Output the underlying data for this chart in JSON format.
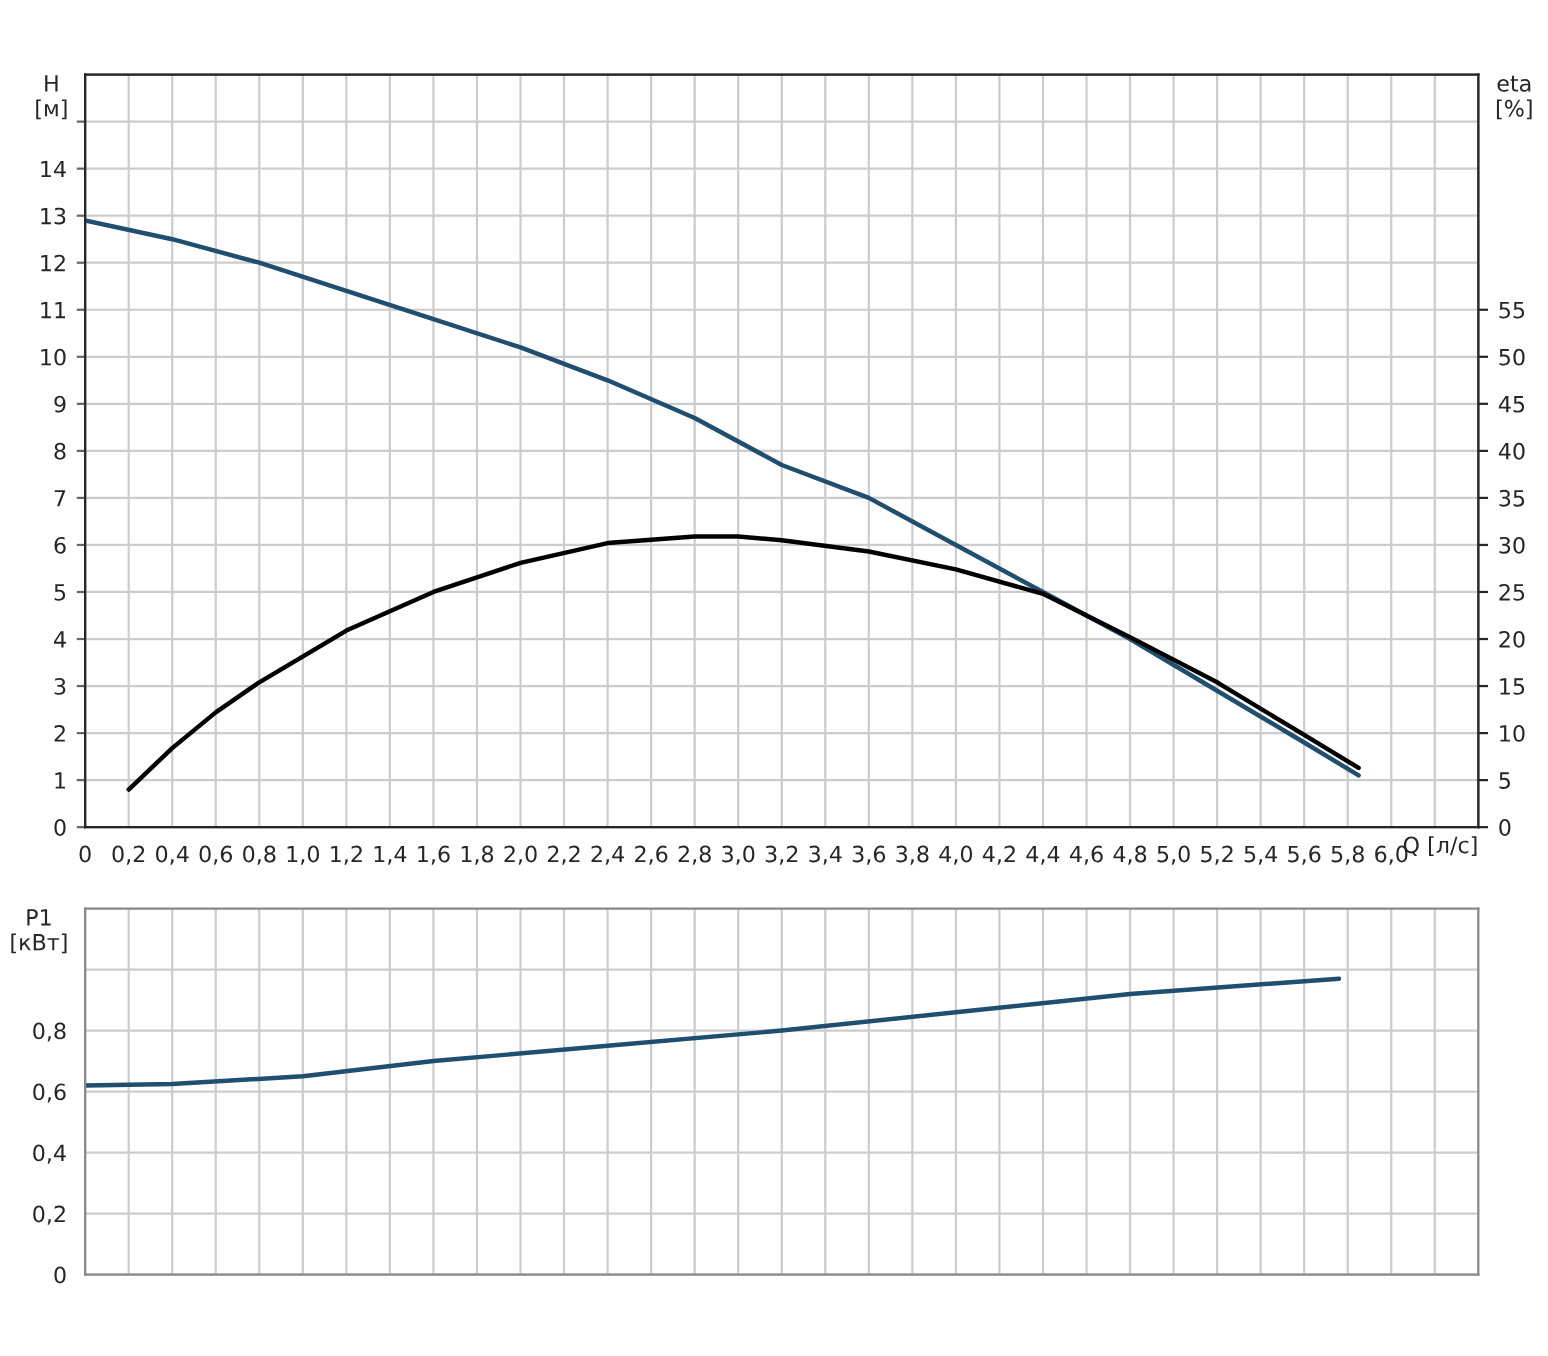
{
  "chart_data": [
    {
      "type": "line",
      "xlabel": "Q [л/с]",
      "ylabel": "H\n[м]",
      "y2label": "eta\n[%]",
      "grid": true,
      "legend": false,
      "marker": "none",
      "line_style": "solid",
      "xlim": [
        0,
        6.4
      ],
      "xticks": [
        {
          "value": 0,
          "label": "0"
        },
        {
          "value": 0.2,
          "label": "0,2"
        },
        {
          "value": 0.4,
          "label": "0,4"
        },
        {
          "value": 0.6,
          "label": "0,6"
        },
        {
          "value": 0.8,
          "label": "0,8"
        },
        {
          "value": 1.0,
          "label": "1,0"
        },
        {
          "value": 1.2,
          "label": "1,2"
        },
        {
          "value": 1.4,
          "label": "1,4"
        },
        {
          "value": 1.6,
          "label": "1,6"
        },
        {
          "value": 1.8,
          "label": "1,8"
        },
        {
          "value": 2.0,
          "label": "2,0"
        },
        {
          "value": 2.2,
          "label": "2,2"
        },
        {
          "value": 2.4,
          "label": "2,4"
        },
        {
          "value": 2.6,
          "label": "2,6"
        },
        {
          "value": 2.8,
          "label": "2,8"
        },
        {
          "value": 3.0,
          "label": "3,0"
        },
        {
          "value": 3.2,
          "label": "3,2"
        },
        {
          "value": 3.4,
          "label": "3,4"
        },
        {
          "value": 3.6,
          "label": "3,6"
        },
        {
          "value": 3.8,
          "label": "3,8"
        },
        {
          "value": 4.0,
          "label": "4,0"
        },
        {
          "value": 4.2,
          "label": "4,2"
        },
        {
          "value": 4.4,
          "label": "4,4"
        },
        {
          "value": 4.6,
          "label": "4,6"
        },
        {
          "value": 4.8,
          "label": "4,8"
        },
        {
          "value": 5.0,
          "label": "5,0"
        },
        {
          "value": 5.2,
          "label": "5,2"
        },
        {
          "value": 5.4,
          "label": "5,4"
        },
        {
          "value": 5.6,
          "label": "5,6"
        },
        {
          "value": 5.8,
          "label": "5,8"
        },
        {
          "value": 6.0,
          "label": "6,0"
        },
        {
          "value": 6.2,
          "label": null
        }
      ],
      "ylim": [
        0,
        16
      ],
      "yticks": [
        0,
        1,
        2,
        3,
        4,
        5,
        6,
        7,
        8,
        9,
        10,
        11,
        12,
        13,
        14,
        {
          "value": 15,
          "label": null
        }
      ],
      "y2lim": [
        0,
        80
      ],
      "y2ticks": [
        0,
        5,
        10,
        15,
        20,
        25,
        30,
        35,
        40,
        45,
        50,
        55
      ],
      "series": [
        {
          "color": "#1f4e6e",
          "x": [
            0,
            0.4,
            0.8,
            1.2,
            1.6,
            2.0,
            2.4,
            2.8,
            3.2,
            3.6,
            4.0,
            4.4,
            4.6,
            4.8,
            5.2,
            5.6,
            5.85
          ],
          "values": [
            12.9,
            12.5,
            12.0,
            11.4,
            10.8,
            10.2,
            9.5,
            8.7,
            7.7,
            7.0,
            6.0,
            5.0,
            4.5,
            4.0,
            2.9,
            1.8,
            1.1
          ]
        },
        {
          "color": "#000000",
          "axis": "y2",
          "x": [
            0.2,
            0.4,
            0.6,
            0.8,
            1.2,
            1.6,
            2.0,
            2.4,
            2.8,
            3.0,
            3.2,
            3.6,
            4.0,
            4.4,
            4.6,
            4.8,
            5.2,
            5.6,
            5.85
          ],
          "values": [
            4.0,
            8.4,
            12.2,
            15.4,
            20.9,
            25.0,
            28.1,
            30.2,
            30.9,
            30.9,
            30.5,
            29.3,
            27.4,
            24.8,
            22.5,
            20.2,
            15.4,
            9.8,
            6.3
          ]
        }
      ]
    },
    {
      "type": "line",
      "ylabel": "P1\n[кВт]",
      "grid": true,
      "legend": false,
      "marker": "none",
      "line_style": "solid",
      "tick_labels": "y",
      "xlim": [
        0,
        6.4
      ],
      "ylim": [
        0,
        1.2
      ],
      "yticks": [
        {
          "value": 0,
          "label": "0"
        },
        {
          "value": 0.2,
          "label": "0,2"
        },
        {
          "value": 0.4,
          "label": "0,4"
        },
        {
          "value": 0.6,
          "label": "0,6"
        },
        {
          "value": 0.8,
          "label": "0,8"
        },
        {
          "value": 1.0,
          "label": null
        }
      ],
      "series": [
        {
          "color": "#1f4e6e",
          "x": [
            0,
            0.4,
            1.0,
            1.6,
            2.4,
            3.2,
            4.0,
            4.8,
            5.76
          ],
          "values": [
            0.62,
            0.625,
            0.65,
            0.7,
            0.75,
            0.8,
            0.86,
            0.92,
            0.97
          ]
        }
      ]
    }
  ]
}
